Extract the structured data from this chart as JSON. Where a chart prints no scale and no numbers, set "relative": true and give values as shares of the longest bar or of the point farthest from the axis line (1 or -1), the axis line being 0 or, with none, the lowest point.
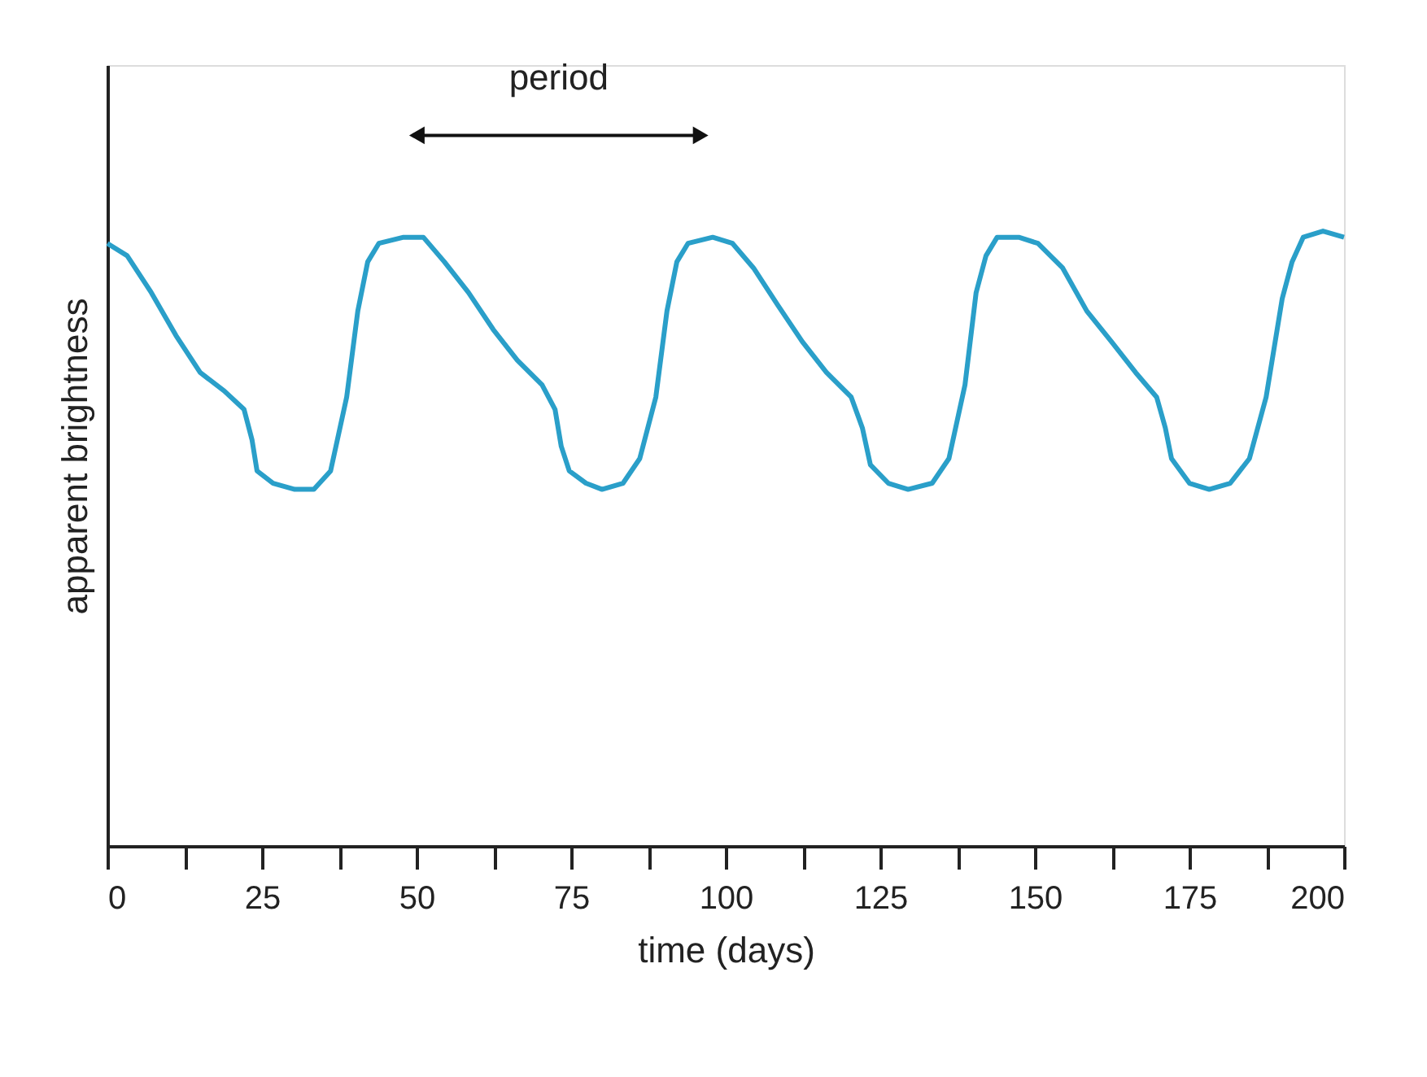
{
  "chart_data": {
    "type": "line",
    "relative": true,
    "xlabel": "time (days)",
    "ylabel": "apparent brightness",
    "annotations": [
      "period"
    ],
    "x": [
      0,
      3.2,
      7.1,
      11.1,
      15,
      18.9,
      22.1,
      23.4,
      24.2,
      26.8,
      30.3,
      33.4,
      36.1,
      38.7,
      40.5,
      42.1,
      43.9,
      47.9,
      51.1,
      54.5,
      58.4,
      62.4,
      66.3,
      70.3,
      72.4,
      73.4,
      74.7,
      77.4,
      80,
      83.4,
      86.1,
      88.7,
      90.5,
      92.1,
      93.9,
      97.9,
      101.1,
      104.5,
      108.4,
      112.4,
      116.3,
      120.3,
      122.1,
      123.4,
      126.3,
      129.5,
      133.4,
      136.1,
      138.7,
      140.5,
      142.1,
      143.9,
      147.4,
      150.5,
      154.5,
      158.4,
      162.4,
      166.3,
      169.7,
      171.1,
      172.1,
      175,
      178.2,
      181.6,
      184.7,
      187.4,
      190,
      191.6,
      193.4,
      196.6,
      200
    ],
    "series": [
      {
        "color": "#2a9fc9",
        "values": [
          0.98,
          0.96,
          0.9,
          0.83,
          0.77,
          0.74,
          0.71,
          0.66,
          0.61,
          0.59,
          0.58,
          0.58,
          0.61,
          0.73,
          0.87,
          0.95,
          0.98,
          0.99,
          0.99,
          0.95,
          0.9,
          0.84,
          0.79,
          0.75,
          0.71,
          0.65,
          0.61,
          0.59,
          0.58,
          0.59,
          0.63,
          0.73,
          0.87,
          0.95,
          0.98,
          0.99,
          0.98,
          0.94,
          0.88,
          0.82,
          0.77,
          0.73,
          0.68,
          0.62,
          0.59,
          0.58,
          0.59,
          0.63,
          0.75,
          0.9,
          0.96,
          0.99,
          0.99,
          0.98,
          0.94,
          0.87,
          0.82,
          0.77,
          0.73,
          0.68,
          0.63,
          0.59,
          0.58,
          0.59,
          0.63,
          0.73,
          0.89,
          0.95,
          0.99,
          1.0,
          0.99
        ]
      }
    ],
    "xlim": [
      0,
      200
    ],
    "xticks": [
      0,
      {
        "value": 12.5,
        "label": null
      },
      25,
      {
        "value": 37.5,
        "label": null
      },
      50,
      {
        "value": 62.5,
        "label": null
      },
      75,
      {
        "value": 87.5,
        "label": null
      },
      100,
      {
        "value": 112.5,
        "label": null
      },
      125,
      {
        "value": 137.5,
        "label": null
      },
      150,
      {
        "value": 162.5,
        "label": null
      },
      175,
      {
        "value": 187.5,
        "label": null
      },
      200
    ],
    "grid": false,
    "legend": false,
    "marker": "none",
    "line_style": "solid"
  }
}
